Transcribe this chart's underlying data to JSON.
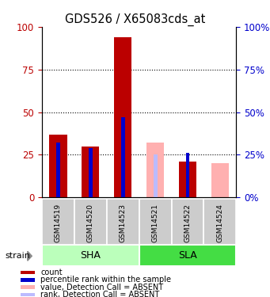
{
  "title": "GDS526 / X65083cds_at",
  "samples": [
    "GSM14519",
    "GSM14520",
    "GSM14523",
    "GSM14521",
    "GSM14522",
    "GSM14524"
  ],
  "red_values": [
    37,
    30,
    94,
    0,
    21,
    0
  ],
  "blue_values": [
    32,
    29,
    47,
    0,
    26,
    0
  ],
  "pink_values": [
    0,
    0,
    0,
    32,
    0,
    20
  ],
  "light_blue_values": [
    0,
    0,
    0,
    25,
    0,
    0
  ],
  "ylim": [
    0,
    100
  ],
  "yticks": [
    0,
    25,
    50,
    75,
    100
  ],
  "red_color": "#BB0000",
  "blue_color": "#0000CC",
  "pink_color": "#FFB0B0",
  "light_blue_color": "#BBBBFF",
  "group_sha_color": "#BBFFBB",
  "group_sla_color": "#44DD44",
  "sample_bg_color": "#CCCCCC",
  "legend_items": [
    {
      "label": "count",
      "color": "#BB0000"
    },
    {
      "label": "percentile rank within the sample",
      "color": "#0000CC"
    },
    {
      "label": "value, Detection Call = ABSENT",
      "color": "#FFB0B0"
    },
    {
      "label": "rank, Detection Call = ABSENT",
      "color": "#BBBBFF"
    }
  ]
}
